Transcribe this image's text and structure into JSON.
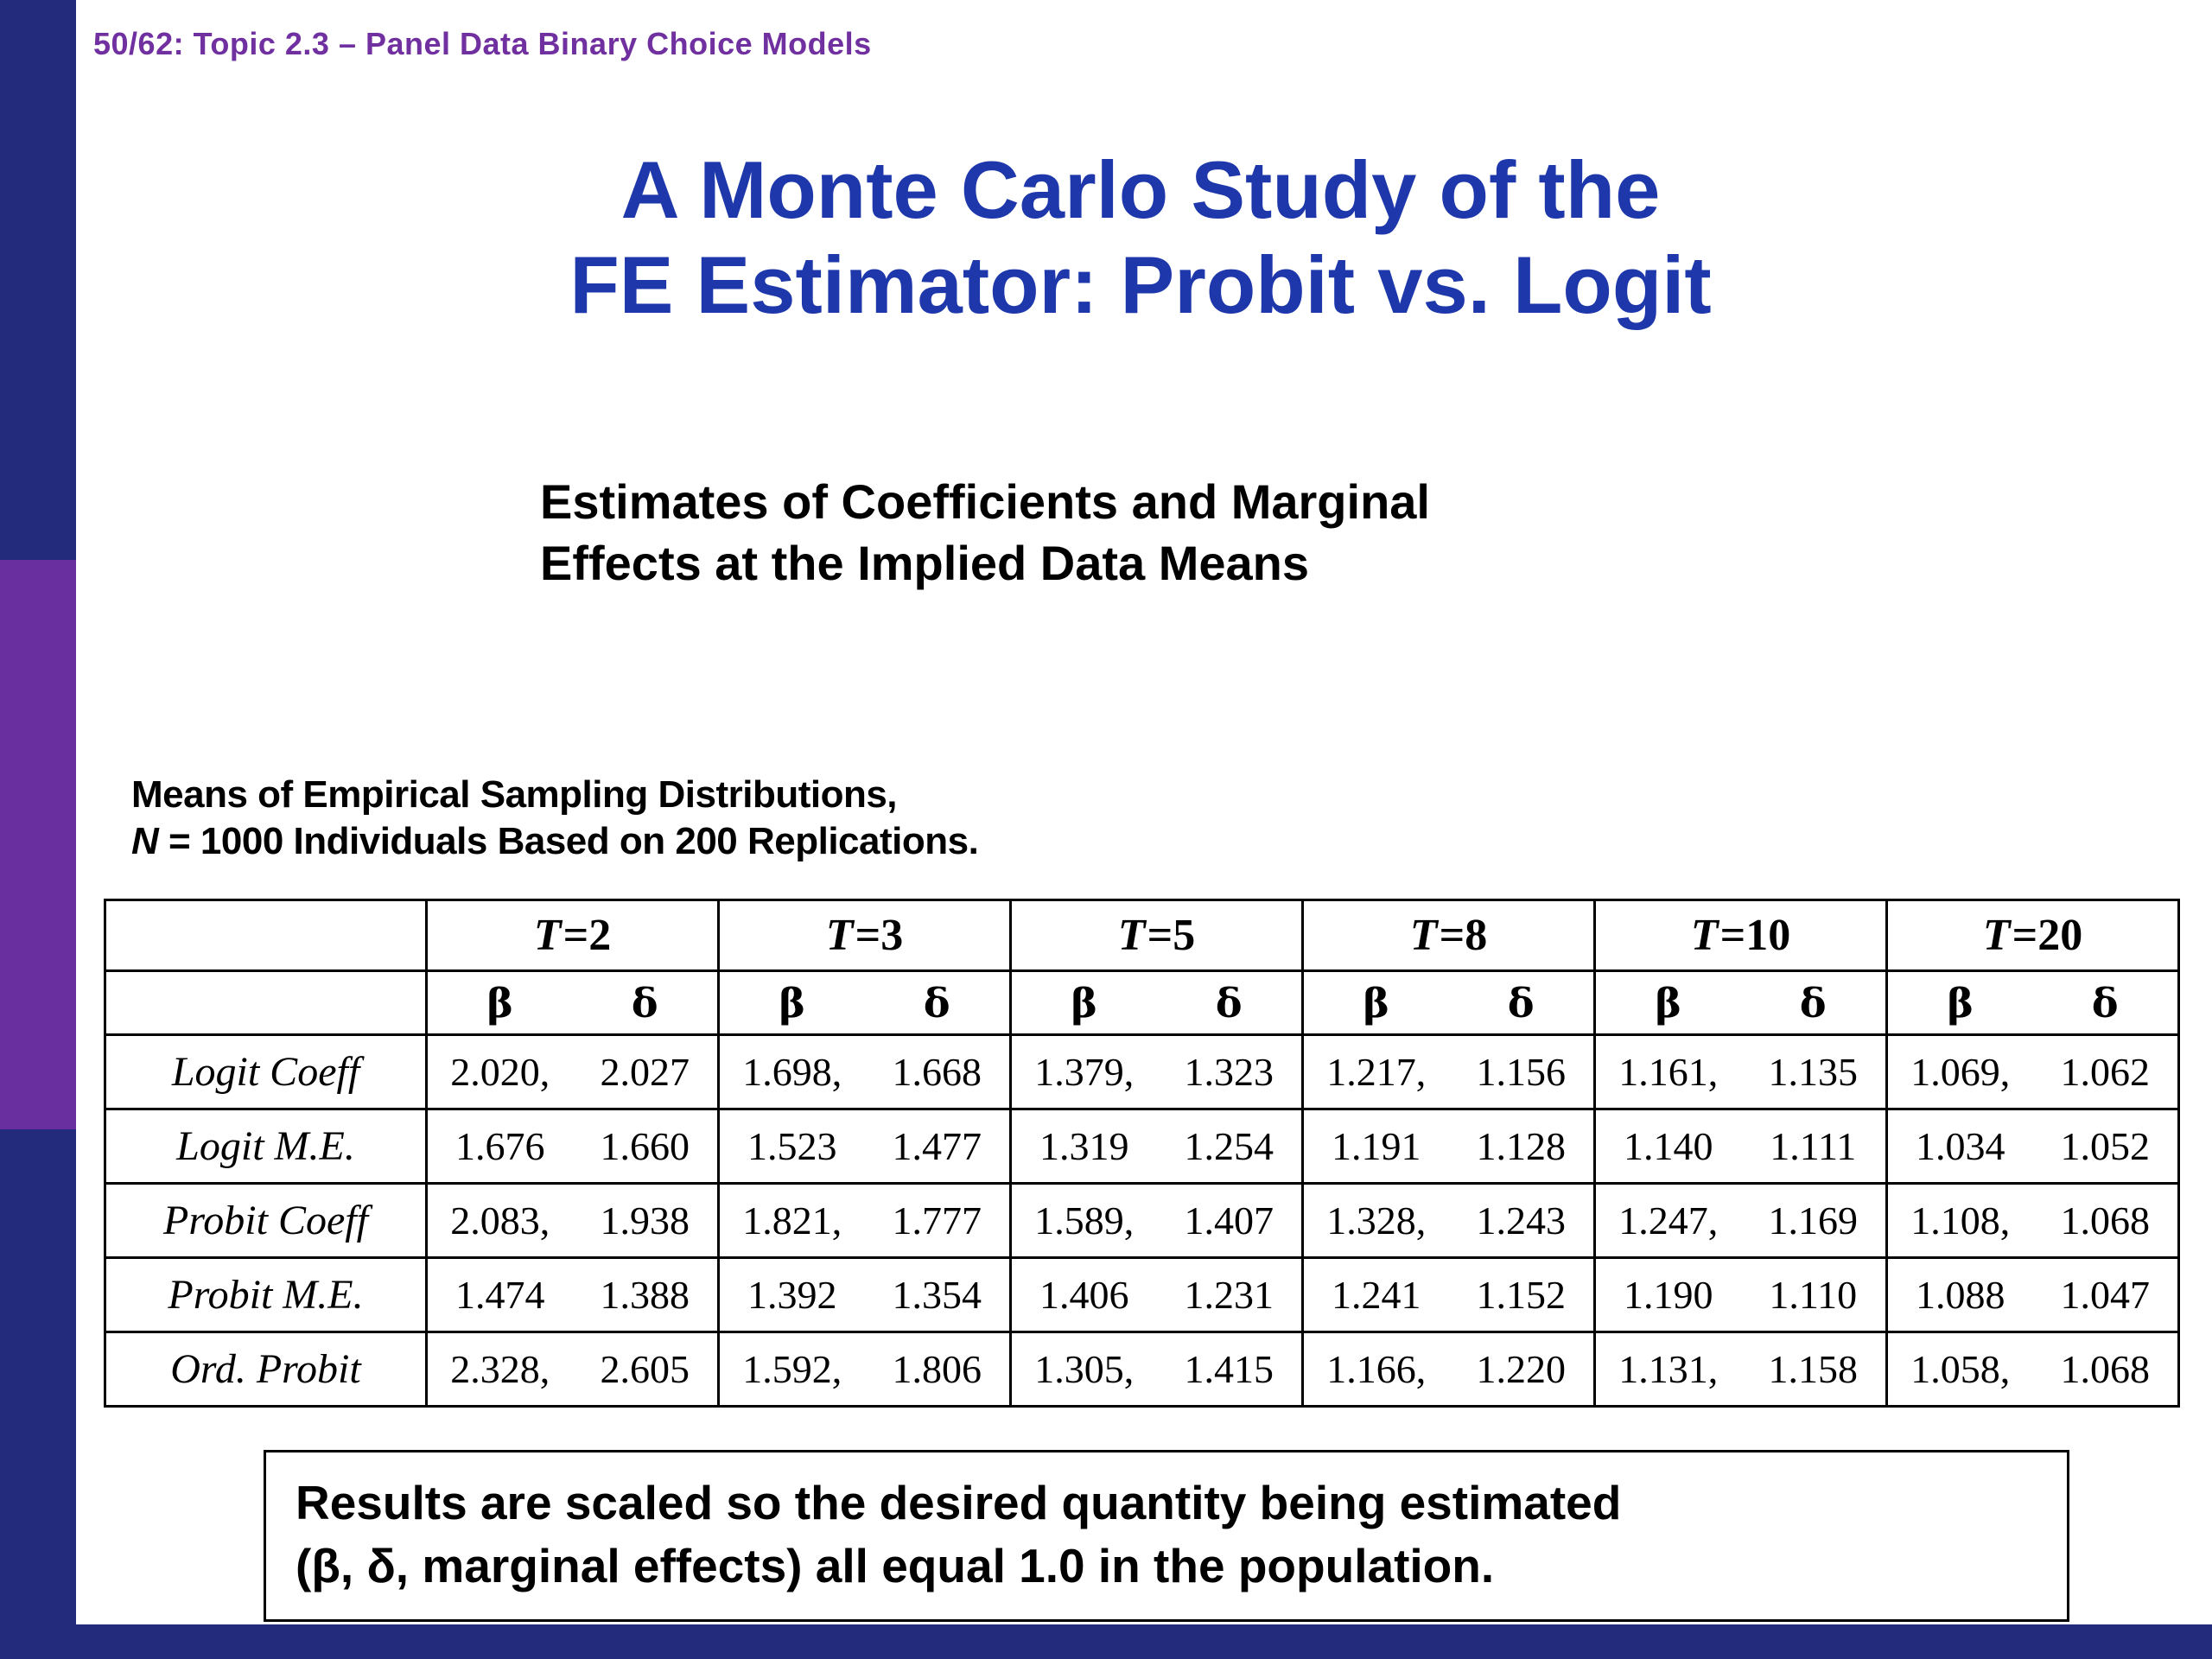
{
  "header": {
    "text": "50/62: Topic 2.3 – Panel Data Binary Choice Models"
  },
  "title": {
    "line1": "A Monte Carlo Study of the",
    "line2": "FE Estimator: Probit vs. Logit"
  },
  "subtitle": {
    "line1": "Estimates of Coefficients and Marginal",
    "line2": "Effects at the Implied Data Means"
  },
  "table": {
    "caption_line1": "Means of Empirical Sampling Distributions,",
    "caption_var": "N",
    "caption_line2_rest": " = 1000 Individuals Based on 200 Replications.",
    "column_groups": [
      "T=2",
      "T=3",
      "T=5",
      "T=8",
      "T=10",
      "T=20"
    ],
    "subheader": {
      "beta": "β",
      "delta": "δ"
    },
    "rows": [
      {
        "label": "Logit Coeff",
        "cells": [
          {
            "b": "2.020,",
            "d": "2.027"
          },
          {
            "b": "1.698,",
            "d": "1.668"
          },
          {
            "b": "1.379,",
            "d": "1.323"
          },
          {
            "b": "1.217,",
            "d": "1.156"
          },
          {
            "b": "1.161,",
            "d": "1.135"
          },
          {
            "b": "1.069,",
            "d": "1.062"
          }
        ]
      },
      {
        "label": "Logit M.E.",
        "cells": [
          {
            "b": "1.676",
            "d": "1.660"
          },
          {
            "b": "1.523",
            "d": "1.477"
          },
          {
            "b": "1.319",
            "d": "1.254"
          },
          {
            "b": "1.191",
            "d": "1.128"
          },
          {
            "b": "1.140",
            "d": "1.111"
          },
          {
            "b": "1.034",
            "d": "1.052"
          }
        ]
      },
      {
        "label": "Probit Coeff",
        "cells": [
          {
            "b": "2.083,",
            "d": "1.938"
          },
          {
            "b": "1.821,",
            "d": "1.777"
          },
          {
            "b": "1.589,",
            "d": "1.407"
          },
          {
            "b": "1.328,",
            "d": "1.243"
          },
          {
            "b": "1.247,",
            "d": "1.169"
          },
          {
            "b": "1.108,",
            "d": "1.068"
          }
        ]
      },
      {
        "label": "Probit M.E.",
        "cells": [
          {
            "b": "1.474",
            "d": "1.388"
          },
          {
            "b": "1.392",
            "d": "1.354"
          },
          {
            "b": "1.406",
            "d": "1.231"
          },
          {
            "b": "1.241",
            "d": "1.152"
          },
          {
            "b": "1.190",
            "d": "1.110"
          },
          {
            "b": "1.088",
            "d": "1.047"
          }
        ]
      },
      {
        "label": "Ord. Probit",
        "cells": [
          {
            "b": "2.328,",
            "d": "2.605"
          },
          {
            "b": "1.592,",
            "d": "1.806"
          },
          {
            "b": "1.305,",
            "d": "1.415"
          },
          {
            "b": "1.166,",
            "d": "1.220"
          },
          {
            "b": "1.131,",
            "d": "1.158"
          },
          {
            "b": "1.058,",
            "d": "1.068"
          }
        ]
      }
    ]
  },
  "note": {
    "line1": "Results are scaled so the desired quantity being estimated",
    "line2": "(β, δ, marginal effects) all equal 1.0 in the population."
  },
  "colors": {
    "navy": "#232b7d",
    "purple": "#6a2f9e",
    "header_purple": "#7030a0",
    "title_blue": "#1e38ab"
  }
}
